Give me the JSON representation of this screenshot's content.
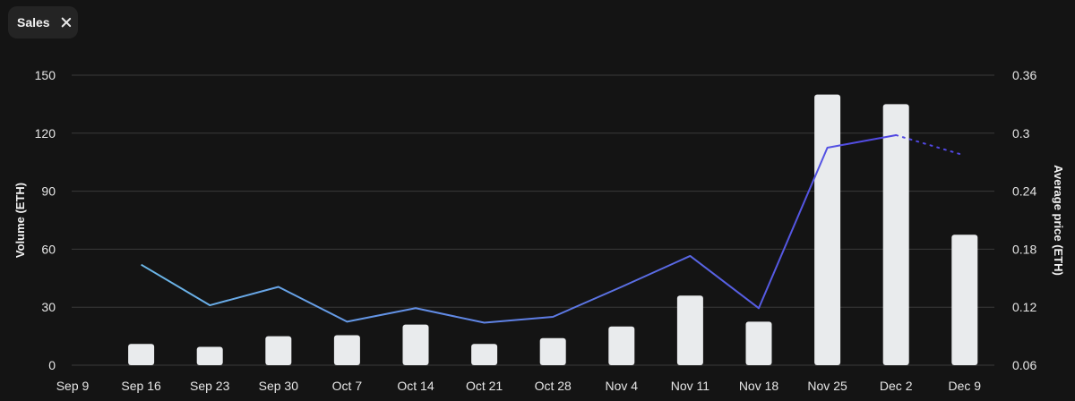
{
  "filter_chip": {
    "label": "Sales",
    "close_icon": "close-icon"
  },
  "chart_data": {
    "type": "bar",
    "categories": [
      "Sep 9",
      "Sep 16",
      "Sep 23",
      "Sep 30",
      "Oct 7",
      "Oct 14",
      "Oct 21",
      "Oct 28",
      "Nov 4",
      "Nov 11",
      "Nov 18",
      "Nov 25",
      "Dec 2",
      "Dec 9"
    ],
    "ylabel": "Volume (ETH)",
    "y2label": "Average price (ETH)",
    "ylim": [
      0,
      150
    ],
    "y2lim": [
      0.06,
      0.36
    ],
    "yticks": [
      "0",
      "30",
      "60",
      "90",
      "120",
      "150"
    ],
    "y2ticks": [
      "0.06",
      "0.12",
      "0.18",
      "0.24",
      "0.3",
      "0.36"
    ],
    "grid": true,
    "series": [
      {
        "type": "bar",
        "axis": "left",
        "values": [
          null,
          11,
          9.5,
          15,
          15.5,
          21,
          11,
          14,
          20,
          36,
          22.5,
          140,
          135,
          67.5
        ]
      },
      {
        "type": "line",
        "axis": "right",
        "values": [
          null,
          0.164,
          0.122,
          0.141,
          0.105,
          0.119,
          0.104,
          0.11,
          0.141,
          0.173,
          0.119,
          0.285,
          0.298,
          0.277
        ],
        "dotted_from_index": 12
      }
    ],
    "colors": {
      "bar": "#e9ebed",
      "line_start": "#6cb8e8",
      "line_end": "#5147e2",
      "grid": "#3a3a3a"
    }
  }
}
